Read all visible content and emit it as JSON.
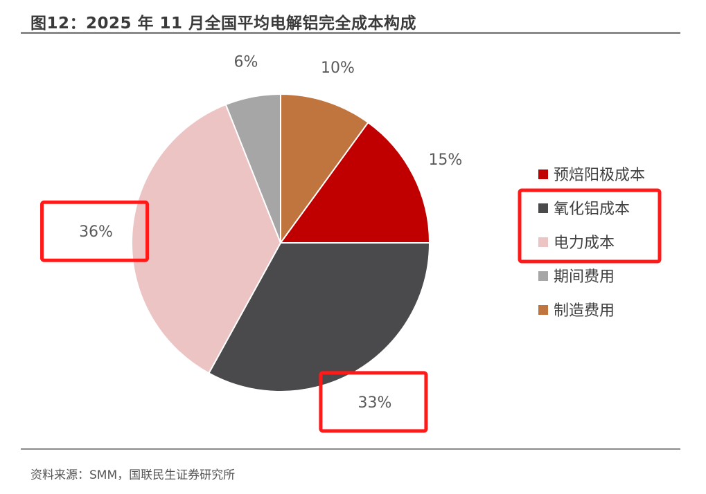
{
  "header": {
    "title": "图12：2025 年 11 月全国平均电解铝完全成本构成"
  },
  "footer": {
    "source": "资料来源：SMM，国联民生证券研究所"
  },
  "chart_data": {
    "type": "pie",
    "title": "图12：2025 年 11 月全国平均电解铝完全成本构成",
    "categories": [
      "预焙阳极成本",
      "氧化铝成本",
      "电力成本",
      "期间费用",
      "制造费用"
    ],
    "values": [
      15,
      33,
      36,
      6,
      10
    ],
    "labels": [
      "15%",
      "33%",
      "36%",
      "6%",
      "10%"
    ],
    "colors": [
      "#c00000",
      "#4a4a4d",
      "#ecc4c4",
      "#a6a6a6",
      "#c0743e"
    ],
    "legend": "right",
    "annotations": [
      {
        "type": "highlight-box",
        "target": "labels",
        "items": [
          "36%",
          "33%"
        ],
        "color": "#ff1a1a"
      },
      {
        "type": "highlight-box",
        "target": "legend",
        "items": [
          "氧化铝成本",
          "电力成本"
        ],
        "color": "#ff1a1a"
      }
    ]
  }
}
